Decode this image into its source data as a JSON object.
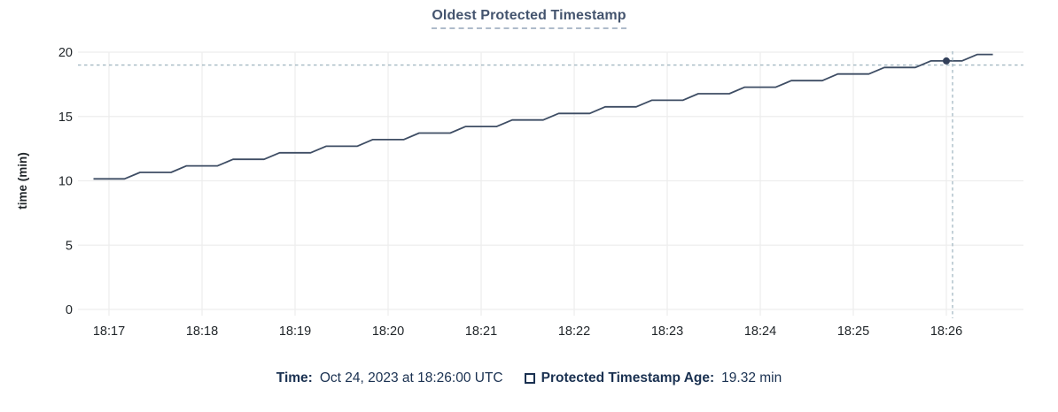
{
  "title": "Oldest Protected Timestamp",
  "colors": {
    "background": "#ffffff",
    "title": "#44546e",
    "title_underline": "#aebbca",
    "line": "#3e4d64",
    "dot": "#33405a",
    "grid": "#ededed",
    "axis_text": "#1f2428",
    "legend_text": "#1a3151",
    "crosshair": "#a3b8c2"
  },
  "chart_data": {
    "type": "line",
    "title": "Oldest Protected Timestamp",
    "xlabel": "",
    "ylabel": "time (min)",
    "ylim": [
      0,
      20
    ],
    "yticks": [
      0,
      5,
      10,
      15,
      20
    ],
    "xticks": [
      "18:17",
      "18:18",
      "18:19",
      "18:20",
      "18:21",
      "18:22",
      "18:23",
      "18:24",
      "18:25",
      "18:26"
    ],
    "grid": true,
    "legend_position": "bottom",
    "series": [
      {
        "name": "Protected Timestamp Age",
        "unit": "min",
        "start": "18:16:50",
        "interval_sec": 10,
        "values": [
          10.15,
          10.15,
          10.15,
          10.65,
          10.65,
          10.65,
          11.16,
          11.16,
          11.16,
          11.67,
          11.67,
          11.67,
          12.18,
          12.18,
          12.18,
          12.69,
          12.69,
          12.69,
          13.2,
          13.2,
          13.2,
          13.71,
          13.71,
          13.71,
          14.22,
          14.22,
          14.22,
          14.73,
          14.73,
          14.73,
          15.24,
          15.24,
          15.24,
          15.75,
          15.75,
          15.75,
          16.26,
          16.26,
          16.26,
          16.77,
          16.77,
          16.77,
          17.28,
          17.28,
          17.28,
          17.79,
          17.79,
          17.79,
          18.3,
          18.3,
          18.3,
          18.81,
          18.81,
          18.81,
          19.32,
          19.32,
          19.32,
          19.82,
          19.82
        ]
      }
    ],
    "crosshair": {
      "hover_time": "18:26:00",
      "point_value": 19.32,
      "hline_value": 19.0
    }
  },
  "legend": {
    "time_label": "Time:",
    "time_value": "Oct 24, 2023 at 18:26:00 UTC",
    "series_label": "Protected Timestamp Age:",
    "series_value": "19.32 min"
  }
}
